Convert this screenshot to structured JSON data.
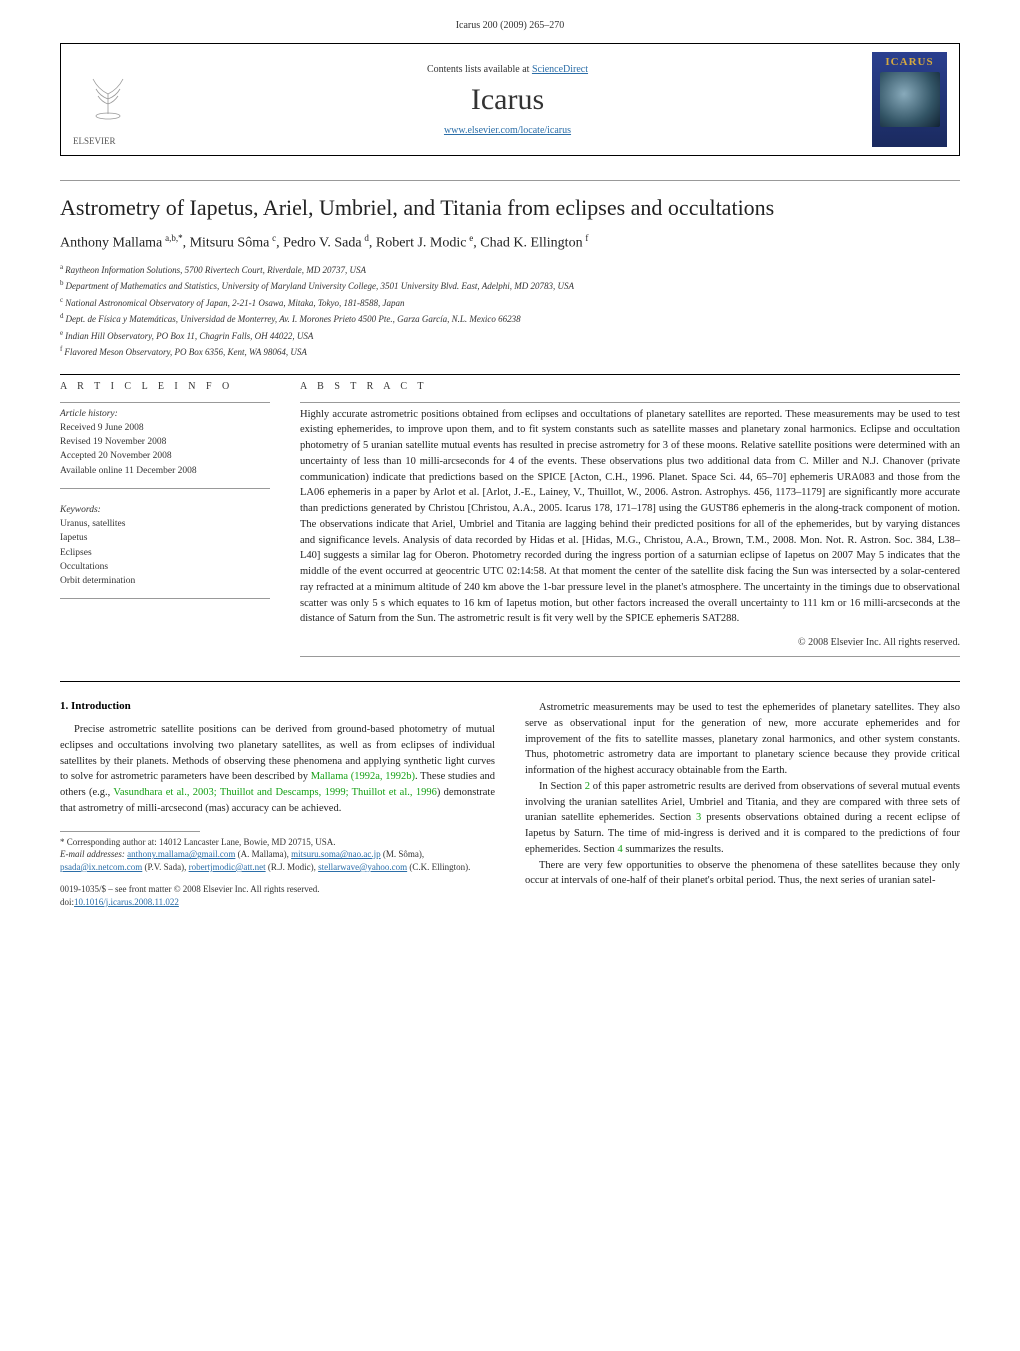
{
  "header": {
    "running_head": "Icarus 200 (2009) 265–270"
  },
  "topbox": {
    "contents_prefix": "Contents lists available at ",
    "contents_link": "ScienceDirect",
    "journal_name": "Icarus",
    "journal_url": "www.elsevier.com/locate/icarus",
    "publisher_label": "ELSEVIER",
    "cover_title": "ICARUS"
  },
  "article": {
    "title": "Astrometry of Iapetus, Ariel, Umbriel, and Titania from eclipses and occultations",
    "authors_html": "Anthony Mallama",
    "authors": [
      {
        "name": "Anthony Mallama",
        "marks": "a,b,*"
      },
      {
        "name": "Mitsuru Sôma",
        "marks": "c"
      },
      {
        "name": "Pedro V. Sada",
        "marks": "d"
      },
      {
        "name": "Robert J. Modic",
        "marks": "e"
      },
      {
        "name": "Chad K. Ellington",
        "marks": "f"
      }
    ],
    "affiliations": [
      {
        "mark": "a",
        "text": "Raytheon Information Solutions, 5700 Rivertech Court, Riverdale, MD 20737, USA"
      },
      {
        "mark": "b",
        "text": "Department of Mathematics and Statistics, University of Maryland University College, 3501 University Blvd. East, Adelphi, MD 20783, USA"
      },
      {
        "mark": "c",
        "text": "National Astronomical Observatory of Japan, 2-21-1 Osawa, Mitaka, Tokyo, 181-8588, Japan"
      },
      {
        "mark": "d",
        "text": "Dept. de Física y Matemáticas, Universidad de Monterrey, Av. I. Morones Prieto 4500 Pte., Garza García, N.L. Mexico 66238"
      },
      {
        "mark": "e",
        "text": "Indian Hill Observatory, PO Box 11, Chagrin Falls, OH 44022, USA"
      },
      {
        "mark": "f",
        "text": "Flavored Meson Observatory, PO Box 6356, Kent, WA 98064, USA"
      }
    ]
  },
  "info": {
    "heading": "A R T I C L E   I N F O",
    "history_label": "Article history:",
    "history": [
      "Received 9 June 2008",
      "Revised 19 November 2008",
      "Accepted 20 November 2008",
      "Available online 11 December 2008"
    ],
    "keywords_label": "Keywords:",
    "keywords": [
      "Uranus, satellites",
      "Iapetus",
      "Eclipses",
      "Occultations",
      "Orbit determination"
    ]
  },
  "abstract": {
    "heading": "A B S T R A C T",
    "text": "Highly accurate astrometric positions obtained from eclipses and occultations of planetary satellites are reported. These measurements may be used to test existing ephemerides, to improve upon them, and to fit system constants such as satellite masses and planetary zonal harmonics. Eclipse and occultation photometry of 5 uranian satellite mutual events has resulted in precise astrometry for 3 of these moons. Relative satellite positions were determined with an uncertainty of less than 10 milli-arcseconds for 4 of the events. These observations plus two additional data from C. Miller and N.J. Chanover (private communication) indicate that predictions based on the SPICE [Acton, C.H., 1996. Planet. Space Sci. 44, 65–70] ephemeris URA083 and those from the LA06 ephemeris in a paper by Arlot et al. [Arlot, J.-E., Lainey, V., Thuillot, W., 2006. Astron. Astrophys. 456, 1173–1179] are significantly more accurate than predictions generated by Christou [Christou, A.A., 2005. Icarus 178, 171–178] using the GUST86 ephemeris in the along-track component of motion. The observations indicate that Ariel, Umbriel and Titania are lagging behind their predicted positions for all of the ephemerides, but by varying distances and significance levels. Analysis of data recorded by Hidas et al. [Hidas, M.G., Christou, A.A., Brown, T.M., 2008. Mon. Not. R. Astron. Soc. 384, L38–L40] suggests a similar lag for Oberon. Photometry recorded during the ingress portion of a saturnian eclipse of Iapetus on 2007 May 5 indicates that the middle of the event occurred at geocentric UTC 02:14:58. At that moment the center of the satellite disk facing the Sun was intersected by a solar-centered ray refracted at a minimum altitude of 240 km above the 1-bar pressure level in the planet's atmosphere. The uncertainty in the timings due to observational scatter was only 5 s which equates to 16 km of Iapetus motion, but other factors increased the overall uncertainty to 111 km or 16 milli-arcseconds at the distance of Saturn from the Sun. The astrometric result is fit very well by the SPICE ephemeris SAT288.",
    "copyright": "© 2008 Elsevier Inc. All rights reserved."
  },
  "body": {
    "section1_heading": "1. Introduction",
    "left_paragraphs": [
      "Precise astrometric satellite positions can be derived from ground-based photometry of mutual eclipses and occultations involving two planetary satellites, as well as from eclipses of individual satellites by their planets. Methods of observing these phenomena and applying synthetic light curves to solve for astrometric parameters have been described by Mallama (1992a, 1992b). These studies and others (e.g., Vasundhara et al., 2003; Thuillot and Descamps, 1999; Thuillot et al., 1996) demonstrate that astrometry of milli-arcsecond (mas) accuracy can be achieved."
    ],
    "right_paragraphs": [
      "Astrometric measurements may be used to test the ephemerides of planetary satellites. They also serve as observational input for the generation of new, more accurate ephemerides and for improvement of the fits to satellite masses, planetary zonal harmonics, and other system constants. Thus, photometric astrometry data are important to planetary science because they provide critical information of the highest accuracy obtainable from the Earth.",
      "In Section 2 of this paper astrometric results are derived from observations of several mutual events involving the uranian satellites Ariel, Umbriel and Titania, and they are compared with three sets of uranian satellite ephemerides. Section 3 presents observations obtained during a recent eclipse of Iapetus by Saturn. The time of mid-ingress is derived and it is compared to the predictions of four ephemerides. Section 4 summarizes the results.",
      "There are very few opportunities to observe the phenomena of these satellites because they only occur at intervals of one-half of their planet's orbital period. Thus, the next series of uranian satel-"
    ]
  },
  "footnotes": {
    "corresponding": "Corresponding author at: 14012 Lancaster Lane, Bowie, MD 20715, USA.",
    "email_label": "E-mail addresses:",
    "emails": [
      {
        "addr": "anthony.mallama@gmail.com",
        "who": "(A. Mallama)"
      },
      {
        "addr": "mitsuru.soma@nao.ac.jp",
        "who": "(M. Sôma)"
      },
      {
        "addr": "psada@ix.netcom.com",
        "who": "(P.V. Sada)"
      },
      {
        "addr": "robertjmodic@att.net",
        "who": "(R.J. Modic)"
      },
      {
        "addr": "stellarwave@yahoo.com",
        "who": "(C.K. Ellington)"
      }
    ]
  },
  "bottom": {
    "issn_line": "0019-1035/$ – see front matter © 2008 Elsevier Inc. All rights reserved.",
    "doi_label": "doi:",
    "doi": "10.1016/j.icarus.2008.11.022"
  },
  "colors": {
    "link_blue": "#2b6ea8",
    "link_green": "#15a015",
    "text": "#222222",
    "rule": "#000000",
    "light_rule": "#999999"
  }
}
